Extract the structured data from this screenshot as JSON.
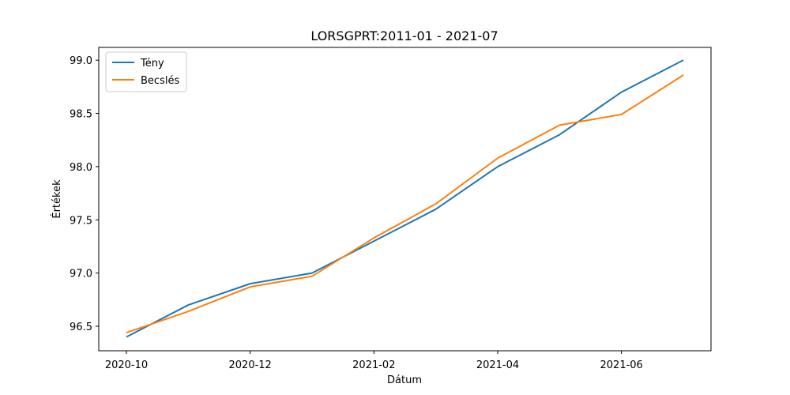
{
  "chart_data": {
    "type": "line",
    "title": "LORSGPRT:2011-01 - 2021-07",
    "xlabel": "Dátum",
    "ylabel": "Értékek",
    "x": [
      "2020-10",
      "2020-11",
      "2020-12",
      "2021-01",
      "2021-02",
      "2021-03",
      "2021-04",
      "2021-05",
      "2021-06",
      "2021-07"
    ],
    "x_ticks": [
      "2020-10",
      "2020-12",
      "2021-02",
      "2021-04",
      "2021-06"
    ],
    "y_ticks": [
      "96.5",
      "97.0",
      "97.5",
      "98.0",
      "98.5",
      "99.0"
    ],
    "ylim": [
      96.27,
      99.12
    ],
    "grid": false,
    "legend_position": "top-left",
    "series": [
      {
        "name": "Tény",
        "color": "#1f77b4",
        "values": [
          96.4,
          96.7,
          96.9,
          97.0,
          97.3,
          97.6,
          98.0,
          98.3,
          98.7,
          99.0
        ]
      },
      {
        "name": "Becslés",
        "color": "#ff7f0e",
        "values": [
          96.44,
          96.64,
          96.87,
          96.97,
          97.33,
          97.65,
          98.08,
          98.39,
          98.49,
          98.86
        ]
      }
    ]
  }
}
